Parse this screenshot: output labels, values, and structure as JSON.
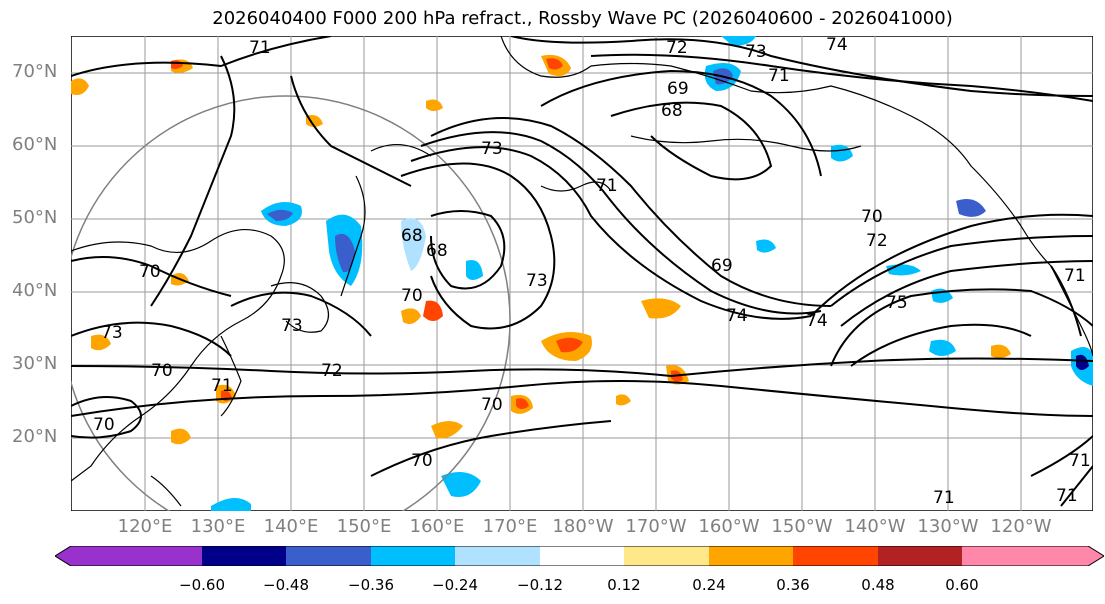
{
  "title": "2026040400 F000 200 hPa refract., Rossby Wave PC (2026040600 - 2026041000)",
  "lat_labels": [
    "70°N",
    "60°N",
    "50°N",
    "40°N",
    "30°N",
    "20°N"
  ],
  "lon_labels": [
    "120°E",
    "130°E",
    "140°E",
    "150°E",
    "160°E",
    "170°E",
    "180°W",
    "170°W",
    "160°W",
    "150°W",
    "140°W",
    "130°W",
    "120°W"
  ],
  "colorbar": {
    "ticks": [
      "−0.60",
      "−0.48",
      "−0.36",
      "−0.24",
      "−0.12",
      "0.12",
      "0.24",
      "0.36",
      "0.48",
      "0.60"
    ],
    "colors": [
      "#9932cc",
      "#00008b",
      "#3a5fcd",
      "#00bfff",
      "#b0e2ff",
      "#ffffff",
      "#ffe88a",
      "#ffa500",
      "#ff4500",
      "#b22222",
      "#ff88aa"
    ]
  },
  "contour_labels": [
    "71",
    "72",
    "73",
    "74",
    "71",
    "69",
    "68",
    "73",
    "71",
    "70",
    "72",
    "69",
    "68",
    "68",
    "73",
    "70",
    "73",
    "74",
    "74",
    "75",
    "70",
    "73",
    "70",
    "70",
    "72",
    "71",
    "70",
    "71",
    "71",
    "71",
    "71",
    "70"
  ],
  "palette": {
    "land": "#000000",
    "grid": "#9a9a9a",
    "circle": "#808080"
  }
}
